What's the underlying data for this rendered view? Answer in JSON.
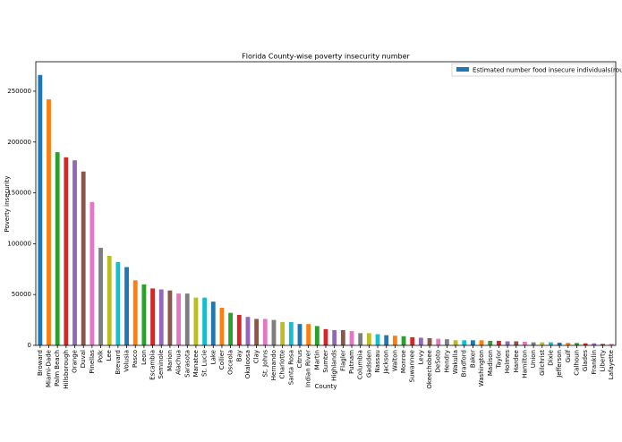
{
  "chart_data": {
    "type": "bar",
    "title": "Florida County-wise poverty insecurity number",
    "x_label": "County",
    "y_label": "Poverty insecurity",
    "categories": [
      "Broward",
      "Miami-Dade",
      "Palm Beach",
      "Hillsborough",
      "Orange",
      "Duval",
      "Pinellas",
      "Polk",
      "Lee",
      "Brevard",
      "Volusia",
      "Pasco",
      "Leon",
      "Escambia",
      "Seminole",
      "Marion",
      "Alachua",
      "Sarasota",
      "Manatee",
      "St. Lucie",
      "Lake",
      "Collier",
      "Osceola",
      "Bay",
      "Okaloosa",
      "Clay",
      "St. Johns",
      "Hernando",
      "Charlotte",
      "Santa Rosa",
      "Citrus",
      "Indian River",
      "Martin",
      "Sumter",
      "Highlands",
      "Flagler",
      "Putnam",
      "Columbia",
      "Gadsden",
      "Nassau",
      "Jackson",
      "Walton",
      "Monroe",
      "Suwannee",
      "Levy",
      "Okeechobee",
      "DeSoto",
      "Hendry",
      "Wakulla",
      "Bradford",
      "Baker",
      "Washington",
      "Madison",
      "Taylor",
      "Holmes",
      "Hardee",
      "Hamilton",
      "Union",
      "Gilchrist",
      "Dixie",
      "Jefferson",
      "Gulf",
      "Calhoun",
      "Glades",
      "Franklin",
      "Liberty",
      "Lafayette"
    ],
    "series": [
      {
        "name": "Estimated number food insecure individuals(rounded)",
        "color": "#1f77b4",
        "values": [
          266000,
          242000,
          190000,
          185000,
          182000,
          171000,
          141000,
          96000,
          88000,
          82000,
          77000,
          64000,
          60000,
          56000,
          55000,
          54000,
          51000,
          51000,
          47000,
          47000,
          43000,
          37000,
          32000,
          30000,
          28000,
          26000,
          26000,
          25000,
          23000,
          23000,
          21000,
          21000,
          19000,
          16000,
          15000,
          15000,
          14000,
          12000,
          12000,
          11000,
          10000,
          9500,
          9000,
          8000,
          7500,
          7000,
          6500,
          6000,
          5000,
          5000,
          5000,
          5000,
          4500,
          4500,
          4000,
          4000,
          3500,
          3000,
          3000,
          3000,
          2700,
          2500,
          2300,
          2000,
          2000,
          1500,
          1500
        ]
      }
    ],
    "bar_colors": [
      "#1f77b4",
      "#ff7f0e",
      "#2ca02c",
      "#d62728",
      "#9467bd",
      "#8c564b",
      "#e377c2",
      "#7f7f7f",
      "#bcbd22",
      "#17becf"
    ],
    "ylim": [
      0,
      279000
    ],
    "yticks": [
      0,
      50000,
      100000,
      150000,
      200000,
      250000
    ],
    "legend": "upper right"
  }
}
